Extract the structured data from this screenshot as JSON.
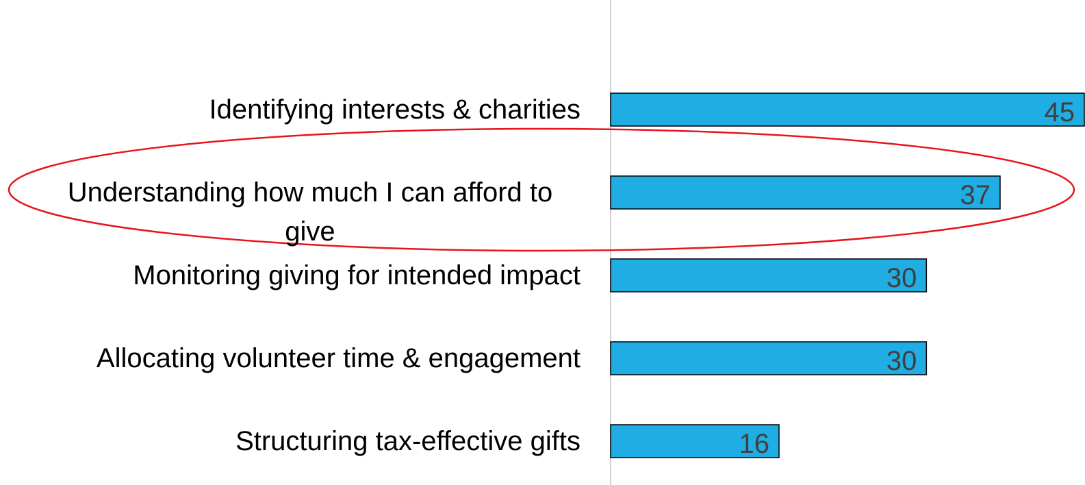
{
  "chart_data": {
    "type": "bar",
    "orientation": "horizontal",
    "categories": [
      "Identifying interests & charities",
      "Understanding how much I can afford to give",
      "Monitoring giving for intended impact",
      "Allocating volunteer time & engagement",
      "Structuring tax-effective gifts"
    ],
    "values": [
      45,
      37,
      30,
      30,
      16
    ],
    "color": "#1fade4",
    "xlim": [
      0,
      45
    ]
  }
}
